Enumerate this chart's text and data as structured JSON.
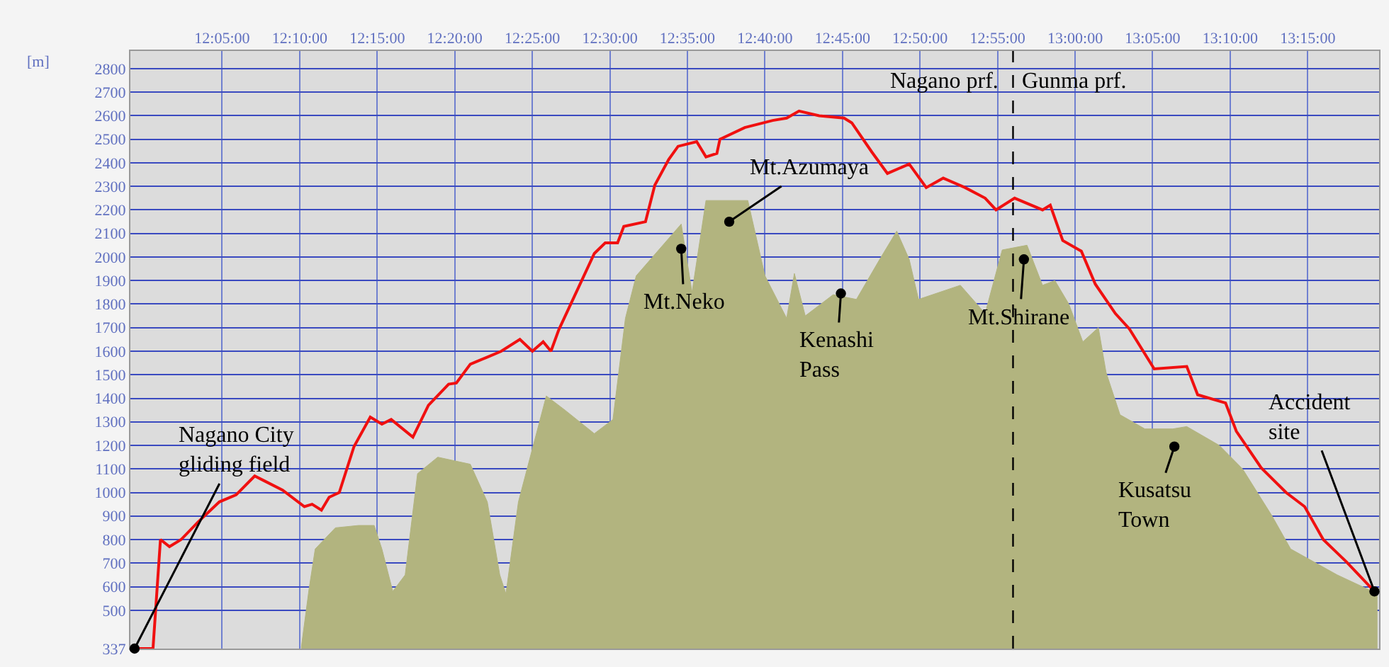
{
  "chart_data": {
    "type": "line",
    "ylabel": "[m]",
    "xlim": [
      11.9847,
      13.3267
    ],
    "xticks": [
      {
        "value": 12.0833,
        "label": "12:05:00"
      },
      {
        "value": 12.1667,
        "label": "12:10:00"
      },
      {
        "value": 12.25,
        "label": "12:15:00"
      },
      {
        "value": 12.3333,
        "label": "12:20:00"
      },
      {
        "value": 12.4167,
        "label": "12:25:00"
      },
      {
        "value": 12.5,
        "label": "12:30:00"
      },
      {
        "value": 12.5833,
        "label": "12:35:00"
      },
      {
        "value": 12.6667,
        "label": "12:40:00"
      },
      {
        "value": 12.75,
        "label": "12:45:00"
      },
      {
        "value": 12.8333,
        "label": "12:50:00"
      },
      {
        "value": 12.9167,
        "label": "12:55:00"
      },
      {
        "value": 13.0,
        "label": "13:00:00"
      },
      {
        "value": 13.0833,
        "label": "13:05:00"
      },
      {
        "value": 13.1667,
        "label": "13:10:00"
      },
      {
        "value": 13.25,
        "label": "13:15:00"
      }
    ],
    "ylim": [
      337,
      2875
    ],
    "yticks": [
      337,
      500,
      600,
      700,
      800,
      900,
      1000,
      1100,
      1200,
      1300,
      1400,
      1500,
      1600,
      1700,
      1800,
      1900,
      2000,
      2100,
      2200,
      2300,
      2400,
      2500,
      2600,
      2700,
      2800
    ],
    "grid": true,
    "marker": "none",
    "series": [
      {
        "type": "area",
        "color": "#b2b47f",
        "x": [
          12.1683,
          12.1767,
          12.1833,
          12.205,
          12.23,
          12.2467,
          12.255,
          12.2667,
          12.28,
          12.2933,
          12.315,
          12.35,
          12.3683,
          12.3817,
          12.3883,
          12.4017,
          12.4317,
          12.4517,
          12.4833,
          12.5033,
          12.5167,
          12.5283,
          12.5767,
          12.5883,
          12.6033,
          12.6483,
          12.6667,
          12.69,
          12.6983,
          12.71,
          12.74,
          12.765,
          12.79,
          12.8083,
          12.8217,
          12.8317,
          12.8767,
          12.9033,
          12.9217,
          12.9483,
          12.965,
          12.9783,
          12.9933,
          13.0083,
          13.025,
          13.0333,
          13.0483,
          13.075,
          13.105,
          13.12,
          13.155,
          13.18,
          13.2117,
          13.2317,
          13.2817,
          13.325
        ],
        "values": [
          340,
          590,
          760,
          850,
          860,
          860,
          760,
          580,
          650,
          1080,
          1150,
          1120,
          960,
          650,
          570,
          960,
          1410,
          1350,
          1250,
          1310,
          1740,
          1920,
          2140,
          1850,
          2240,
          2240,
          1920,
          1740,
          1930,
          1750,
          1840,
          1820,
          1990,
          2110,
          1990,
          1820,
          1880,
          1760,
          2030,
          2050,
          1880,
          1900,
          1800,
          1640,
          1700,
          1510,
          1330,
          1270,
          1270,
          1280,
          1200,
          1100,
          900,
          760,
          650,
          570
        ]
      },
      {
        "color": "#f01010",
        "x": [
          11.9892,
          12.009,
          12.017,
          12.0267,
          12.0392,
          12.0575,
          12.0803,
          12.0983,
          12.1183,
          12.1283,
          12.1483,
          12.1717,
          12.18,
          12.19,
          12.1983,
          12.2092,
          12.225,
          12.2425,
          12.255,
          12.265,
          12.2883,
          12.305,
          12.3267,
          12.335,
          12.35,
          12.3683,
          12.3833,
          12.4033,
          12.4167,
          12.4283,
          12.4367,
          12.445,
          12.4833,
          12.495,
          12.5083,
          12.515,
          12.5383,
          12.5483,
          12.5633,
          12.5733,
          12.5933,
          12.6033,
          12.615,
          12.6183,
          12.645,
          12.675,
          12.69,
          12.7033,
          12.725,
          12.7517,
          12.76,
          12.7817,
          12.7983,
          12.8217,
          12.84,
          12.8583,
          12.8817,
          12.9033,
          12.915,
          12.935,
          12.965,
          12.9733,
          12.9867,
          13.0067,
          13.0217,
          13.0433,
          13.0583,
          13.085,
          13.12,
          13.1317,
          13.1617,
          13.1733,
          13.2,
          13.2267,
          13.2467,
          13.2667,
          13.2917,
          13.3217
        ],
        "values": [
          337,
          337,
          800,
          770,
          800,
          875,
          960,
          990,
          1070,
          1050,
          1010,
          940,
          950,
          925,
          980,
          1000,
          1195,
          1320,
          1290,
          1310,
          1235,
          1370,
          1460,
          1465,
          1545,
          1575,
          1600,
          1650,
          1600,
          1640,
          1600,
          1690,
          2015,
          2060,
          2060,
          2130,
          2150,
          2305,
          2415,
          2470,
          2490,
          2425,
          2440,
          2500,
          2550,
          2580,
          2590,
          2620,
          2600,
          2590,
          2570,
          2445,
          2355,
          2395,
          2295,
          2335,
          2295,
          2250,
          2200,
          2250,
          2200,
          2220,
          2070,
          2025,
          1885,
          1760,
          1695,
          1525,
          1535,
          1415,
          1380,
          1260,
          1105,
          1000,
          940,
          800,
          705,
          580
        ]
      }
    ],
    "ref_lines": [
      {
        "axis": "x",
        "value": 12.9333,
        "color": "#000000",
        "line_style": "dashed"
      }
    ],
    "annotations": [
      {
        "text": "Nagano City\ngliding field",
        "x": 11.9892,
        "y": 337
      },
      {
        "text": "Mt.Neko",
        "x": 12.5767,
        "y": 2035
      },
      {
        "text": "Mt.Azumaya",
        "x": 12.6283,
        "y": 2150
      },
      {
        "text": "Kenashi\nPass",
        "x": 12.7483,
        "y": 1845
      },
      {
        "text": "Mt.Shirane",
        "x": 12.945,
        "y": 1990
      },
      {
        "text": "Kusatsu\nTown",
        "x": 13.1067,
        "y": 1195
      },
      {
        "text": "Accident\nsite",
        "x": 13.3217,
        "y": 580
      },
      "Nagano prf.",
      "Gunma prf."
    ]
  }
}
